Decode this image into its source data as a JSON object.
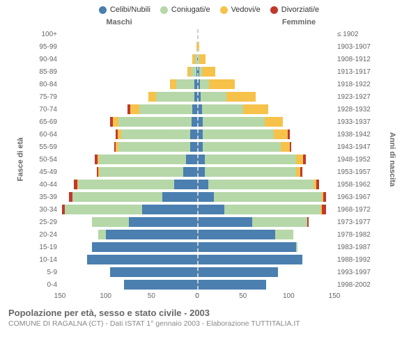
{
  "legend": [
    {
      "label": "Celibi/Nubili",
      "color": "#4a7fb0"
    },
    {
      "label": "Coniugati/e",
      "color": "#b6d7a8"
    },
    {
      "label": "Vedovi/e",
      "color": "#f6c24a"
    },
    {
      "label": "Divorziati/e",
      "color": "#c0392b"
    }
  ],
  "titles": {
    "males": "Maschi",
    "females": "Femmine",
    "y_left": "Fasce di età",
    "y_right": "Anni di nascita"
  },
  "axis": {
    "max": 150,
    "ticks_left": [
      150,
      100,
      50,
      0
    ],
    "ticks_right": [
      0,
      50,
      100,
      150
    ]
  },
  "age_groups": [
    {
      "age": "100+",
      "year": "≤ 1902",
      "m": {
        "celibi": 0,
        "coniugati": 0,
        "vedovi": 0,
        "divorziati": 0
      },
      "f": {
        "celibi": 0,
        "coniugati": 0,
        "vedovi": 0,
        "divorziati": 0
      }
    },
    {
      "age": "95-99",
      "year": "1903-1907",
      "m": {
        "celibi": 0,
        "coniugati": 0,
        "vedovi": 1,
        "divorziati": 0
      },
      "f": {
        "celibi": 0,
        "coniugati": 0,
        "vedovi": 2,
        "divorziati": 0
      }
    },
    {
      "age": "90-94",
      "year": "1908-1912",
      "m": {
        "celibi": 0,
        "coniugati": 2,
        "vedovi": 3,
        "divorziati": 0
      },
      "f": {
        "celibi": 1,
        "coniugati": 1,
        "vedovi": 7,
        "divorziati": 0
      }
    },
    {
      "age": "85-89",
      "year": "1913-1917",
      "m": {
        "celibi": 1,
        "coniugati": 6,
        "vedovi": 4,
        "divorziati": 0
      },
      "f": {
        "celibi": 2,
        "coniugati": 3,
        "vedovi": 15,
        "divorziati": 0
      }
    },
    {
      "age": "80-84",
      "year": "1918-1922",
      "m": {
        "celibi": 3,
        "coniugati": 20,
        "vedovi": 7,
        "divorziati": 0
      },
      "f": {
        "celibi": 3,
        "coniugati": 10,
        "vedovi": 28,
        "divorziati": 0
      }
    },
    {
      "age": "75-79",
      "year": "1923-1927",
      "m": {
        "celibi": 3,
        "coniugati": 42,
        "vedovi": 8,
        "divorziati": 0
      },
      "f": {
        "celibi": 4,
        "coniugati": 28,
        "vedovi": 32,
        "divorziati": 0
      }
    },
    {
      "age": "70-74",
      "year": "1928-1932",
      "m": {
        "celibi": 5,
        "coniugati": 58,
        "vedovi": 10,
        "divorziati": 3
      },
      "f": {
        "celibi": 5,
        "coniugati": 45,
        "vedovi": 28,
        "divorziati": 0
      }
    },
    {
      "age": "65-69",
      "year": "1933-1937",
      "m": {
        "celibi": 6,
        "coniugati": 80,
        "vedovi": 6,
        "divorziati": 3
      },
      "f": {
        "celibi": 6,
        "coniugati": 68,
        "vedovi": 20,
        "divorziati": 0
      }
    },
    {
      "age": "60-64",
      "year": "1938-1942",
      "m": {
        "celibi": 8,
        "coniugati": 75,
        "vedovi": 4,
        "divorziati": 2
      },
      "f": {
        "celibi": 6,
        "coniugati": 78,
        "vedovi": 15,
        "divorziati": 2
      }
    },
    {
      "age": "55-59",
      "year": "1943-1947",
      "m": {
        "celibi": 8,
        "coniugati": 78,
        "vedovi": 3,
        "divorziati": 2
      },
      "f": {
        "celibi": 6,
        "coniugati": 85,
        "vedovi": 10,
        "divorziati": 2
      }
    },
    {
      "age": "50-54",
      "year": "1948-1952",
      "m": {
        "celibi": 12,
        "coniugati": 95,
        "vedovi": 2,
        "divorziati": 3
      },
      "f": {
        "celibi": 8,
        "coniugati": 100,
        "vedovi": 8,
        "divorziati": 3
      }
    },
    {
      "age": "45-49",
      "year": "1953-1957",
      "m": {
        "celibi": 15,
        "coniugati": 92,
        "vedovi": 1,
        "divorziati": 2
      },
      "f": {
        "celibi": 8,
        "coniugati": 100,
        "vedovi": 5,
        "divorziati": 2
      }
    },
    {
      "age": "40-44",
      "year": "1958-1962",
      "m": {
        "celibi": 25,
        "coniugati": 105,
        "vedovi": 1,
        "divorziati": 4
      },
      "f": {
        "celibi": 12,
        "coniugati": 115,
        "vedovi": 3,
        "divorziati": 3
      }
    },
    {
      "age": "35-39",
      "year": "1963-1967",
      "m": {
        "celibi": 38,
        "coniugati": 98,
        "vedovi": 0,
        "divorziati": 4
      },
      "f": {
        "celibi": 18,
        "coniugati": 118,
        "vedovi": 2,
        "divorziati": 3
      }
    },
    {
      "age": "30-34",
      "year": "1968-1972",
      "m": {
        "celibi": 60,
        "coniugati": 85,
        "vedovi": 0,
        "divorziati": 3
      },
      "f": {
        "celibi": 30,
        "coniugati": 105,
        "vedovi": 1,
        "divorziati": 5
      }
    },
    {
      "age": "25-29",
      "year": "1973-1977",
      "m": {
        "celibi": 75,
        "coniugati": 40,
        "vedovi": 0,
        "divorziati": 0
      },
      "f": {
        "celibi": 60,
        "coniugati": 60,
        "vedovi": 0,
        "divorziati": 2
      }
    },
    {
      "age": "20-24",
      "year": "1978-1982",
      "m": {
        "celibi": 100,
        "coniugati": 8,
        "vedovi": 0,
        "divorziati": 0
      },
      "f": {
        "celibi": 85,
        "coniugati": 20,
        "vedovi": 0,
        "divorziati": 0
      }
    },
    {
      "age": "15-19",
      "year": "1983-1987",
      "m": {
        "celibi": 115,
        "coniugati": 0,
        "vedovi": 0,
        "divorziati": 0
      },
      "f": {
        "celibi": 108,
        "coniugati": 2,
        "vedovi": 0,
        "divorziati": 0
      }
    },
    {
      "age": "10-14",
      "year": "1988-1992",
      "m": {
        "celibi": 120,
        "coniugati": 0,
        "vedovi": 0,
        "divorziati": 0
      },
      "f": {
        "celibi": 115,
        "coniugati": 0,
        "vedovi": 0,
        "divorziati": 0
      }
    },
    {
      "age": "5-9",
      "year": "1993-1997",
      "m": {
        "celibi": 95,
        "coniugati": 0,
        "vedovi": 0,
        "divorziati": 0
      },
      "f": {
        "celibi": 88,
        "coniugati": 0,
        "vedovi": 0,
        "divorziati": 0
      }
    },
    {
      "age": "0-4",
      "year": "1998-2002",
      "m": {
        "celibi": 80,
        "coniugati": 0,
        "vedovi": 0,
        "divorziati": 0
      },
      "f": {
        "celibi": 75,
        "coniugati": 0,
        "vedovi": 0,
        "divorziati": 0
      }
    }
  ],
  "colors": {
    "celibi": "#4a7fb0",
    "coniugati": "#b6d7a8",
    "vedovi": "#f6c24a",
    "divorziati": "#c0392b",
    "grid": "#cccccc",
    "text": "#666666"
  },
  "footer": {
    "title": "Popolazione per età, sesso e stato civile - 2003",
    "subtitle": "COMUNE DI RAGALNA (CT) - Dati ISTAT 1° gennaio 2003 - Elaborazione TUTTITALIA.IT"
  }
}
